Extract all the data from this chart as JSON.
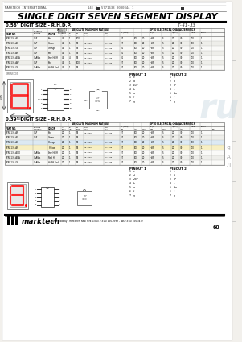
{
  "bg_color": "#f2f0ec",
  "title_main": "SINGLE DIGIT SEVEN SEGMENT DISPLAY",
  "header_left": "MARKTECH INTERNATIONAL",
  "header_mid": "14E 3",
  "header_right": "5771633 0030344 1",
  "part_number": "T-41-33",
  "section1_title": "0.56\" DIGIT SIZE - R.H.D.P.",
  "section2_title": "0.39\" DIGIT SIZE - R.H.D.P.",
  "footer_company": "marktech",
  "footer_addr": "400 Broadway - Herkimer, New York 13350 - (914) 456-9999 - FAX: (914) 456-3477",
  "page_num": "60",
  "table1_parts": [
    "MTN2139-AG",
    "MTN2139-AO",
    "MTN2139-GR",
    "MTN2139-AR",
    "MTN2139-AGA",
    "MTN2139-AW",
    "MTN2139-GE"
  ],
  "table1_emit": [
    "GaP",
    "GaP",
    "GaP",
    "GaP",
    "GaAlAs",
    "GaP",
    "GaAlAs"
  ],
  "table1_color": [
    "Red",
    "Green",
    "Orange",
    "Red",
    "Scar/HiEff",
    "Red",
    "Hi Eff Red"
  ],
  "table1_if": [
    "40",
    "40",
    "40",
    "40",
    "40",
    "40",
    "40"
  ],
  "table1_vf": [
    "1",
    "1",
    "1",
    "1",
    "4",
    "1",
    "1"
  ],
  "table1_pd": [
    "100",
    "85",
    "85",
    "85",
    "85",
    "100",
    "85"
  ],
  "table1_topr": [
    "-25~+85",
    "-25~+85",
    "-25~+85",
    "-25~+85",
    "-25~+85",
    "-25~+85",
    "-25~+85"
  ],
  "table1_tstg": [
    "-35~+85",
    "-35~+85",
    "-35~+85",
    "-35~+85",
    "-35~+85",
    "-35~+85",
    "-35~+85"
  ],
  "table1_iv_min": [
    "2.7",
    "2.7",
    "3.1",
    "3.1",
    "3.1",
    "2.7",
    "2.7"
  ],
  "table1_iv_typ": [
    "100",
    "100",
    "100",
    "100",
    "100",
    "100",
    "100"
  ],
  "table1_iv_max": [
    "20",
    "20",
    "20",
    "20",
    "20",
    "20",
    "20"
  ],
  "table1_vf2_min": [
    "+85",
    "+85",
    "+85",
    "+85",
    "+85",
    "+85",
    "+85"
  ],
  "table1_vf2_max": [
    "5",
    "5",
    "5",
    "5",
    "5",
    "5",
    "5"
  ],
  "table1_etc": [
    "1000",
    "1000",
    "1000",
    "1000",
    "1000",
    "1000",
    "1000"
  ],
  "table2_parts": [
    "MTN1139-AR",
    "MTN1139-AG",
    "MTN1139-AO",
    "MTN1139-AY",
    "MTN1139-AGO",
    "MTN1139-AGA",
    "MTN1139-GE"
  ],
  "table2_emit": [
    "GaP",
    "GaP",
    "",
    "",
    "GaAlAs",
    "GaAlAs",
    "GaAlAs"
  ],
  "table2_color": [
    "Red",
    "Green",
    "Orange",
    "Yellow",
    "Scar/HiEff",
    "Red Hi",
    "Hi Eff Red"
  ],
  "table2_if": [
    "20",
    "20",
    "20",
    "20",
    "20",
    "20",
    "20"
  ],
  "pinout1": [
    [
      "1",
      "e"
    ],
    [
      "2",
      "d"
    ],
    [
      "3",
      "c/DP"
    ],
    [
      "4",
      "b"
    ],
    [
      "5",
      "a"
    ],
    [
      "6",
      "f"
    ],
    [
      "7",
      "g"
    ]
  ],
  "pinout2": [
    [
      "1",
      "e"
    ],
    [
      "2",
      "d"
    ],
    [
      "3",
      "DP"
    ],
    [
      "4",
      "c"
    ],
    [
      "5",
      "b/a"
    ],
    [
      "6",
      "f"
    ],
    [
      "7",
      "g"
    ]
  ]
}
